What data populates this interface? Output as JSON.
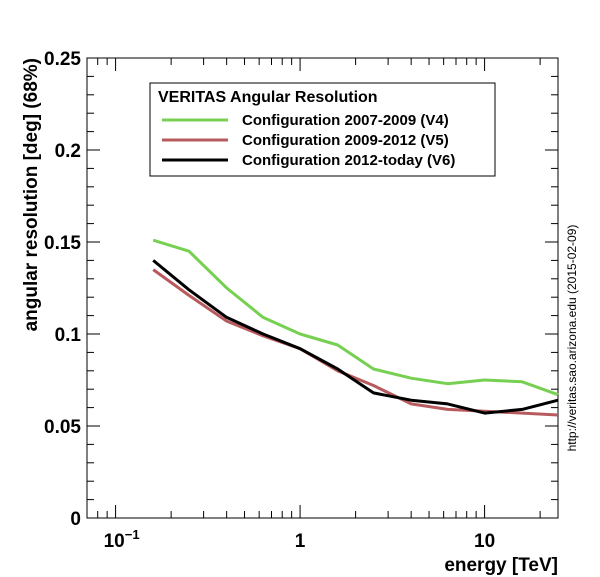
{
  "chart_data": {
    "type": "line",
    "title": "",
    "xlabel": "energy [TeV]",
    "ylabel": "angular resolution [deg] (68%)",
    "xscale": "log",
    "xlim": [
      0.07,
      25
    ],
    "ylim": [
      0,
      0.25
    ],
    "grid": false,
    "x_ticks": [
      {
        "value": 0.1,
        "base": "10",
        "exp": "−1"
      },
      {
        "value": 1,
        "base": "1",
        "exp": ""
      },
      {
        "value": 10,
        "base": "10",
        "exp": ""
      }
    ],
    "y_ticks": [
      {
        "value": 0,
        "label": "0"
      },
      {
        "value": 0.05,
        "label": "0.05"
      },
      {
        "value": 0.1,
        "label": "0.1"
      },
      {
        "value": 0.15,
        "label": "0.15"
      },
      {
        "value": 0.2,
        "label": "0.2"
      },
      {
        "value": 0.25,
        "label": "0.25"
      }
    ],
    "legend": {
      "title": "VERITAS Angular Resolution",
      "position": "top-center"
    },
    "series": [
      {
        "name": "Configuration 2007-2009 (V4)",
        "color": "#77d052",
        "x": [
          0.16,
          0.25,
          0.4,
          0.63,
          1.0,
          1.6,
          2.5,
          4.0,
          6.3,
          10,
          16,
          25
        ],
        "y": [
          0.151,
          0.145,
          0.125,
          0.109,
          0.1,
          0.094,
          0.081,
          0.076,
          0.073,
          0.075,
          0.074,
          0.067
        ]
      },
      {
        "name": "Configuration 2009-2012 (V5)",
        "color": "#b85b5e",
        "x": [
          0.16,
          0.25,
          0.4,
          0.63,
          1.0,
          1.6,
          2.5,
          4.0,
          6.3,
          10,
          16,
          25
        ],
        "y": [
          0.135,
          0.121,
          0.107,
          0.099,
          0.092,
          0.08,
          0.072,
          0.062,
          0.059,
          0.058,
          0.057,
          0.056
        ]
      },
      {
        "name": "Configuration 2012-today (V6)",
        "color": "#000000",
        "x": [
          0.16,
          0.25,
          0.4,
          0.63,
          1.0,
          1.6,
          2.5,
          4.0,
          6.3,
          10,
          16,
          25
        ],
        "y": [
          0.14,
          0.124,
          0.109,
          0.1,
          0.092,
          0.081,
          0.068,
          0.064,
          0.062,
          0.057,
          0.059,
          0.064
        ]
      }
    ],
    "annotation": "http://veritas.sao.arizona.edu (2015-02-09)"
  }
}
